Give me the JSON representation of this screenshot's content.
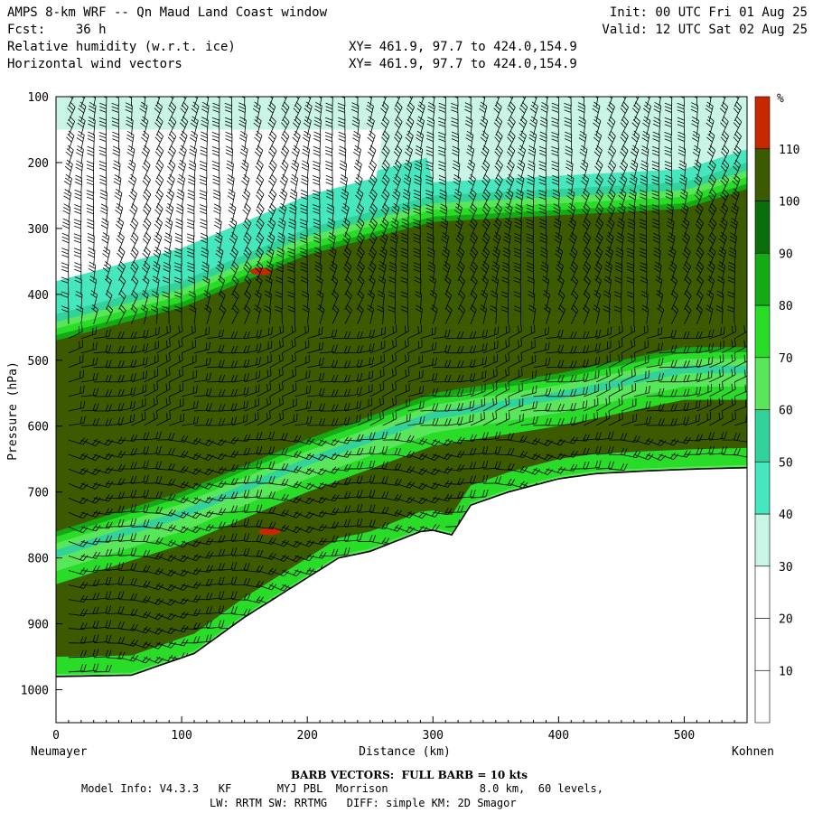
{
  "header": {
    "line1_left": "AMPS 8-km WRF -- Qn Maud Land Coast window",
    "line2_left": "Fcst:    36 h",
    "line3_left": "Relative humidity (w.r.t. ice)",
    "line4_left": "Horizontal wind vectors",
    "line1_right": "Init: 00 UTC Fri 01 Aug 25",
    "line2_right": "Valid: 12 UTC Sat 02 Aug 25",
    "xy1": "XY= 461.9, 97.7 to 424.0,154.9",
    "xy2": "XY= 461.9, 97.7 to 424.0,154.9"
  },
  "chart_data": {
    "type": "heatmap",
    "ylabel": "Pressure (hPa)",
    "xlabel": "Distance (km)",
    "x_left_label": "Neumayer",
    "x_right_label": "Kohnen",
    "xlim": [
      0,
      550
    ],
    "ylim": [
      100,
      1050
    ],
    "y_reversed": true,
    "x_ticks": [
      0,
      100,
      200,
      300,
      400,
      500
    ],
    "y_ticks": [
      100,
      200,
      300,
      400,
      500,
      600,
      700,
      800,
      900,
      1000
    ],
    "colorbar": {
      "unit": "%",
      "levels": [
        10,
        20,
        30,
        40,
        50,
        60,
        70,
        80,
        90,
        100,
        110
      ],
      "colors": [
        "#ffffff",
        "#ffffff",
        "#ffffff",
        "#c8f5e6",
        "#46e6be",
        "#32d29b",
        "#5ae65a",
        "#28dc28",
        "#14aa14",
        "#0a6e0a",
        "#3c5a00",
        "#c82800"
      ]
    },
    "terrain_surface": {
      "distance_km": [
        0,
        60,
        110,
        150,
        175,
        200,
        225,
        250,
        270,
        290,
        300,
        315,
        330,
        345,
        360,
        380,
        400,
        430,
        470,
        510,
        550
      ],
      "pressure_hpa": [
        980,
        978,
        945,
        890,
        860,
        830,
        800,
        790,
        775,
        760,
        758,
        765,
        720,
        710,
        700,
        690,
        680,
        672,
        668,
        665,
        663
      ]
    },
    "moist_layer_upper": {
      "top_hpa": {
        "distance_km": [
          0,
          100,
          200,
          300,
          400,
          500,
          550
        ],
        "pressure_hpa": [
          470,
          420,
          340,
          290,
          280,
          270,
          240
        ]
      },
      "bottom_hpa": {
        "distance_km": [
          0,
          100,
          200,
          300,
          400,
          500,
          550
        ],
        "pressure_hpa": [
          760,
          700,
          620,
          550,
          520,
          480,
          480
        ]
      }
    },
    "max_humidity_spots": [
      {
        "distance_km": 163,
        "pressure_hpa": 365,
        "rh_percent": 110
      },
      {
        "distance_km": 170,
        "pressure_hpa": 760,
        "rh_percent": 110
      }
    ],
    "barb_note": "BARB VECTORS:  FULL BARB = 10 kts"
  },
  "footer": {
    "model_line": "Model Info: V4.3.3   KF       MYJ PBL  Morrison              8.0 km,  60 levels,",
    "physics_line": "LW: RRTM SW: RRTMG   DIFF: simple KM: 2D Smagor"
  }
}
